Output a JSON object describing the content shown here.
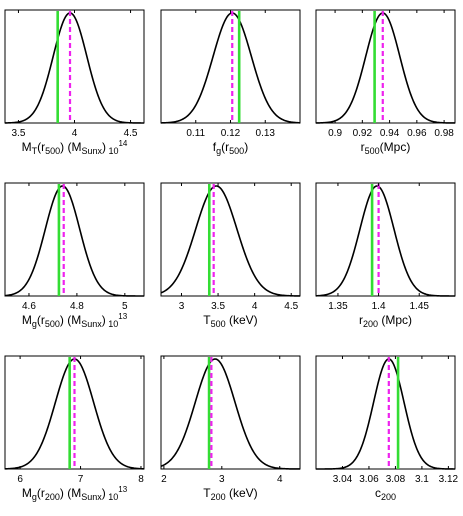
{
  "chart_data": [
    {
      "type": "line",
      "xlabel": "M_T(r_500) (M_Sunx)_10^14",
      "xlabel_parts": [
        {
          "t": "M"
        },
        {
          "t": "T",
          "s": "sub"
        },
        {
          "t": "(r"
        },
        {
          "t": "500",
          "s": "sub"
        },
        {
          "t": ") (M"
        },
        {
          "t": "Sunx",
          "s": "sub"
        },
        {
          "t": ")"
        },
        {
          "t": " 10",
          "s": "sub"
        },
        {
          "t": "14",
          "s": "sup"
        }
      ],
      "xlim": [
        3.38,
        4.62
      ],
      "ticks": [
        3.5,
        4,
        4.5
      ],
      "tick_labels": [
        "3.5",
        "4",
        "4.5"
      ],
      "curve": {
        "mu": 3.96,
        "sigma": 0.15,
        "skew": 0
      },
      "green_line": 3.85,
      "magenta_line": 3.96
    },
    {
      "type": "line",
      "xlabel": "f_g(r_500)",
      "xlabel_parts": [
        {
          "t": "f"
        },
        {
          "t": "g",
          "s": "sub"
        },
        {
          "t": "(r"
        },
        {
          "t": "500",
          "s": "sub"
        },
        {
          "t": ")"
        }
      ],
      "xlim": [
        0.1,
        0.14
      ],
      "ticks": [
        0.11,
        0.12,
        0.13
      ],
      "tick_labels": [
        "0.11",
        "0.12",
        "0.13"
      ],
      "curve": {
        "mu": 0.1205,
        "sigma": 0.0055,
        "skew": 0
      },
      "green_line": 0.1225,
      "magenta_line": 0.1205
    },
    {
      "type": "line",
      "xlabel": "r_500(Mpc)",
      "xlabel_parts": [
        {
          "t": "r"
        },
        {
          "t": "500",
          "s": "sub"
        },
        {
          "t": "(Mpc)"
        }
      ],
      "xlim": [
        0.886,
        0.988
      ],
      "ticks": [
        0.9,
        0.92,
        0.94,
        0.96,
        0.98
      ],
      "tick_labels": [
        "0.9",
        "0.92",
        "0.94",
        "0.96",
        "0.98"
      ],
      "curve": {
        "mu": 0.935,
        "sigma": 0.0125,
        "skew": 0
      },
      "green_line": 0.929,
      "magenta_line": 0.935
    },
    {
      "type": "line",
      "xlabel": "M_g(r_500) (M_Sunx)_10^13",
      "xlabel_parts": [
        {
          "t": "M"
        },
        {
          "t": "g",
          "s": "sub"
        },
        {
          "t": "(r"
        },
        {
          "t": "500",
          "s": "sub"
        },
        {
          "t": ") (M"
        },
        {
          "t": "Sunx",
          "s": "sub"
        },
        {
          "t": ")"
        },
        {
          "t": " 10",
          "s": "sub"
        },
        {
          "t": "13",
          "s": "sup"
        }
      ],
      "xlim": [
        4.5,
        5.08
      ],
      "ticks": [
        4.6,
        4.8,
        5
      ],
      "tick_labels": [
        "4.6",
        "4.8",
        "5"
      ],
      "curve": {
        "mu": 4.74,
        "sigma": 0.072,
        "skew": 0
      },
      "green_line": 4.725,
      "magenta_line": 4.745
    },
    {
      "type": "line",
      "xlabel": "T_500 (keV)",
      "xlabel_parts": [
        {
          "t": "T"
        },
        {
          "t": "500",
          "s": "sub"
        },
        {
          "t": " (keV)"
        }
      ],
      "xlim": [
        2.72,
        4.62
      ],
      "ticks": [
        3,
        3.5,
        4,
        4.5
      ],
      "tick_labels": [
        "3",
        "3.5",
        "4",
        "4.5"
      ],
      "curve": {
        "mu": 3.38,
        "sigma": 0.3,
        "skew": 0.45
      },
      "green_line": 3.38,
      "magenta_line": 3.44
    },
    {
      "type": "line",
      "xlabel": "r_200 (Mpc)",
      "xlabel_parts": [
        {
          "t": "r"
        },
        {
          "t": "200",
          "s": "sub"
        },
        {
          "t": " (Mpc)"
        }
      ],
      "xlim": [
        1.323,
        1.494
      ],
      "ticks": [
        1.35,
        1.4,
        1.45
      ],
      "tick_labels": [
        "1.35",
        "1.4",
        "1.45"
      ],
      "curve": {
        "mu": 1.398,
        "sigma": 0.021,
        "skew": 0
      },
      "green_line": 1.392,
      "magenta_line": 1.4
    },
    {
      "type": "line",
      "xlabel": "M_g(r_200) (M_Sunx)_10^13",
      "xlabel_parts": [
        {
          "t": "M"
        },
        {
          "t": "g",
          "s": "sub"
        },
        {
          "t": "(r"
        },
        {
          "t": "200",
          "s": "sub"
        },
        {
          "t": ") (M"
        },
        {
          "t": "Sunx",
          "s": "sub"
        },
        {
          "t": ")"
        },
        {
          "t": " 10",
          "s": "sub"
        },
        {
          "t": "13",
          "s": "sup"
        }
      ],
      "xlim": [
        5.75,
        8.05
      ],
      "ticks": [
        6,
        7,
        8
      ],
      "tick_labels": [
        "6",
        "7",
        "8"
      ],
      "curve": {
        "mu": 6.85,
        "sigma": 0.32,
        "skew": 0.2
      },
      "green_line": 6.82,
      "magenta_line": 6.9
    },
    {
      "type": "line",
      "xlabel": "T_200 (keV)",
      "xlabel_parts": [
        {
          "t": "T"
        },
        {
          "t": "200",
          "s": "sub"
        },
        {
          "t": " (keV)"
        }
      ],
      "xlim": [
        1.95,
        4.35
      ],
      "ticks": [
        2,
        3,
        4
      ],
      "tick_labels": [
        "2",
        "3",
        "4"
      ],
      "curve": {
        "mu": 2.78,
        "sigma": 0.36,
        "skew": 0.4
      },
      "green_line": 2.78,
      "magenta_line": 2.82
    },
    {
      "type": "line",
      "xlabel": "c_200",
      "xlabel_parts": [
        {
          "t": "c"
        },
        {
          "t": "200",
          "s": "sub"
        }
      ],
      "xlim": [
        3.02,
        3.125
      ],
      "ticks": [
        3.04,
        3.06,
        3.08,
        3.1,
        3.12
      ],
      "tick_labels": [
        "3.04",
        "3.06",
        "3.08",
        "3.1",
        "3.12"
      ],
      "curve": {
        "mu": 3.075,
        "sigma": 0.0115,
        "skew": 0
      },
      "green_line": 3.082,
      "magenta_line": 3.075
    }
  ],
  "colors": {
    "curve": "#000000",
    "green_line": "#33dd33",
    "magenta_line": "#ee22ee",
    "axes": "#000000"
  }
}
